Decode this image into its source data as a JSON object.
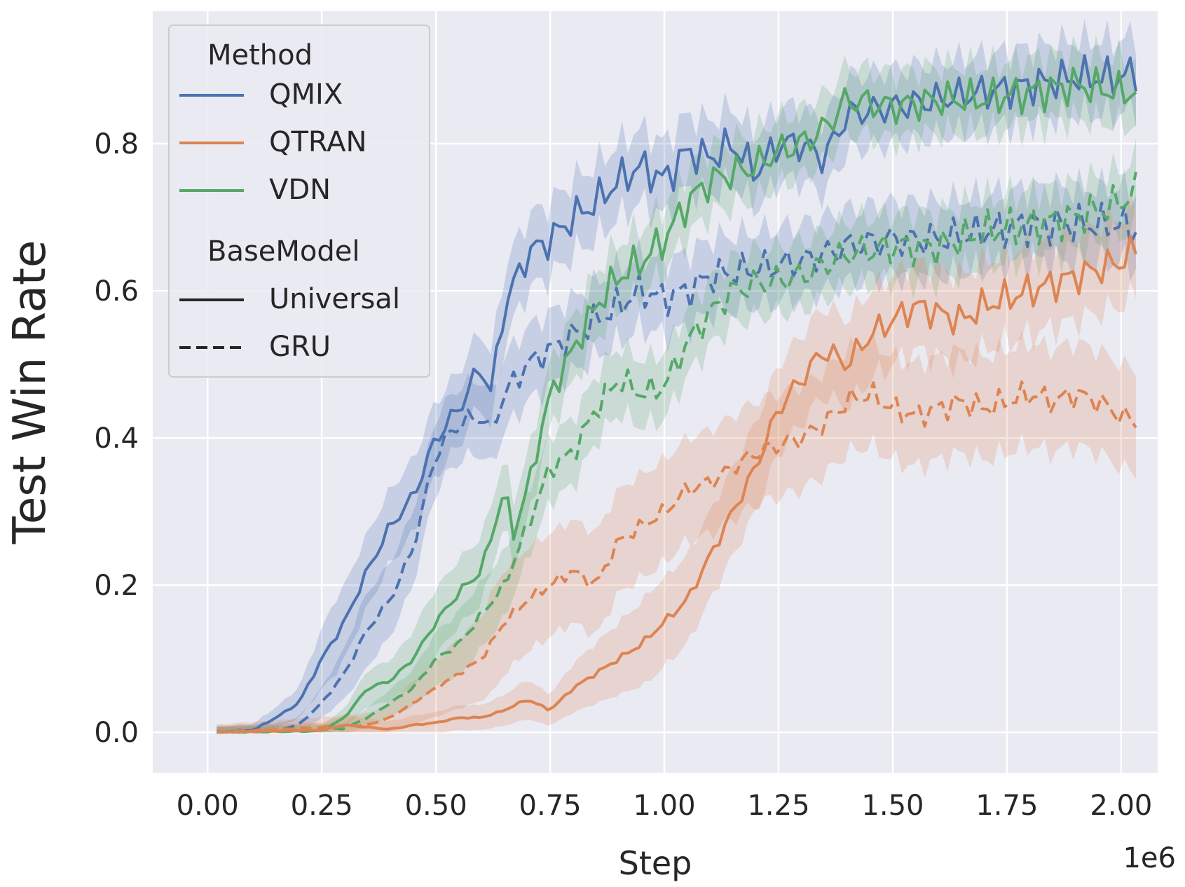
{
  "chart_data": {
    "type": "line",
    "xlabel": "Step",
    "ylabel": "Test Win Rate",
    "x_offset_label": "1e6",
    "xlim": [
      -0.12,
      2.08
    ],
    "ylim": [
      -0.055,
      0.98
    ],
    "x_ticks": [
      0.0,
      0.25,
      0.5,
      0.75,
      1.0,
      1.25,
      1.5,
      1.75,
      2.0
    ],
    "x_tick_labels": [
      "0.00",
      "0.25",
      "0.50",
      "0.75",
      "1.00",
      "1.25",
      "1.50",
      "1.75",
      "2.00"
    ],
    "y_ticks": [
      0.0,
      0.2,
      0.4,
      0.6,
      0.8
    ],
    "y_tick_labels": [
      "0.0",
      "0.2",
      "0.4",
      "0.6",
      "0.8"
    ],
    "grid": true,
    "legend": {
      "placement": "upper-left",
      "method_title": "Method",
      "basemodel_title": "BaseModel",
      "methods": [
        {
          "name": "QMIX",
          "color": "#4c72b0"
        },
        {
          "name": "QTRAN",
          "color": "#dd8452"
        },
        {
          "name": "VDN",
          "color": "#55a868"
        }
      ],
      "basemodels": [
        {
          "name": "Universal",
          "style": "solid"
        },
        {
          "name": "GRU",
          "style": "dashed"
        }
      ]
    },
    "series": [
      {
        "name": "QMIX / Universal",
        "method": "QMIX",
        "basemodel": "Universal",
        "color": "#4c72b0",
        "dash": "solid",
        "band": 0.05,
        "points": [
          [
            0.02,
            0.0
          ],
          [
            0.1,
            0.003
          ],
          [
            0.15,
            0.02
          ],
          [
            0.2,
            0.04
          ],
          [
            0.25,
            0.1
          ],
          [
            0.3,
            0.15
          ],
          [
            0.35,
            0.22
          ],
          [
            0.4,
            0.28
          ],
          [
            0.45,
            0.32
          ],
          [
            0.5,
            0.4
          ],
          [
            0.55,
            0.44
          ],
          [
            0.6,
            0.5
          ],
          [
            0.62,
            0.46
          ],
          [
            0.65,
            0.58
          ],
          [
            0.7,
            0.65
          ],
          [
            0.75,
            0.67
          ],
          [
            0.8,
            0.7
          ],
          [
            0.85,
            0.72
          ],
          [
            0.9,
            0.75
          ],
          [
            0.95,
            0.77
          ],
          [
            1.0,
            0.75
          ],
          [
            1.05,
            0.79
          ],
          [
            1.1,
            0.78
          ],
          [
            1.15,
            0.8
          ],
          [
            1.2,
            0.76
          ],
          [
            1.25,
            0.8
          ],
          [
            1.3,
            0.8
          ],
          [
            1.35,
            0.78
          ],
          [
            1.4,
            0.84
          ],
          [
            1.5,
            0.85
          ],
          [
            1.6,
            0.86
          ],
          [
            1.7,
            0.87
          ],
          [
            1.8,
            0.88
          ],
          [
            1.9,
            0.89
          ],
          [
            2.0,
            0.89
          ],
          [
            2.04,
            0.9
          ]
        ]
      },
      {
        "name": "QMIX / GRU",
        "method": "QMIX",
        "basemodel": "GRU",
        "color": "#4c72b0",
        "dash": "dashed",
        "band": 0.05,
        "points": [
          [
            0.02,
            0.0
          ],
          [
            0.15,
            0.003
          ],
          [
            0.2,
            0.01
          ],
          [
            0.25,
            0.04
          ],
          [
            0.3,
            0.08
          ],
          [
            0.35,
            0.14
          ],
          [
            0.4,
            0.18
          ],
          [
            0.45,
            0.25
          ],
          [
            0.5,
            0.38
          ],
          [
            0.55,
            0.42
          ],
          [
            0.6,
            0.43
          ],
          [
            0.62,
            0.41
          ],
          [
            0.65,
            0.46
          ],
          [
            0.7,
            0.5
          ],
          [
            0.75,
            0.52
          ],
          [
            0.8,
            0.54
          ],
          [
            0.85,
            0.56
          ],
          [
            0.9,
            0.58
          ],
          [
            0.95,
            0.6
          ],
          [
            1.0,
            0.59
          ],
          [
            1.05,
            0.6
          ],
          [
            1.1,
            0.62
          ],
          [
            1.2,
            0.63
          ],
          [
            1.3,
            0.64
          ],
          [
            1.4,
            0.66
          ],
          [
            1.5,
            0.67
          ],
          [
            1.6,
            0.67
          ],
          [
            1.7,
            0.68
          ],
          [
            1.8,
            0.69
          ],
          [
            1.9,
            0.69
          ],
          [
            2.0,
            0.69
          ],
          [
            2.04,
            0.68
          ]
        ]
      },
      {
        "name": "VDN / Universal",
        "method": "VDN",
        "basemodel": "Universal",
        "color": "#55a868",
        "dash": "solid",
        "band": 0.045,
        "points": [
          [
            0.02,
            0.0
          ],
          [
            0.25,
            0.002
          ],
          [
            0.3,
            0.02
          ],
          [
            0.35,
            0.06
          ],
          [
            0.4,
            0.07
          ],
          [
            0.45,
            0.1
          ],
          [
            0.5,
            0.15
          ],
          [
            0.55,
            0.19
          ],
          [
            0.6,
            0.22
          ],
          [
            0.65,
            0.33
          ],
          [
            0.67,
            0.27
          ],
          [
            0.7,
            0.33
          ],
          [
            0.75,
            0.46
          ],
          [
            0.8,
            0.52
          ],
          [
            0.85,
            0.58
          ],
          [
            0.9,
            0.62
          ],
          [
            0.95,
            0.64
          ],
          [
            1.0,
            0.67
          ],
          [
            1.05,
            0.72
          ],
          [
            1.1,
            0.75
          ],
          [
            1.15,
            0.76
          ],
          [
            1.2,
            0.77
          ],
          [
            1.25,
            0.79
          ],
          [
            1.3,
            0.8
          ],
          [
            1.35,
            0.82
          ],
          [
            1.4,
            0.86
          ],
          [
            1.5,
            0.85
          ],
          [
            1.6,
            0.86
          ],
          [
            1.7,
            0.86
          ],
          [
            1.8,
            0.87
          ],
          [
            1.9,
            0.88
          ],
          [
            2.0,
            0.87
          ],
          [
            2.04,
            0.87
          ]
        ]
      },
      {
        "name": "VDN / GRU",
        "method": "VDN",
        "basemodel": "GRU",
        "color": "#55a868",
        "dash": "dashed",
        "band": 0.045,
        "points": [
          [
            0.02,
            0.0
          ],
          [
            0.3,
            0.005
          ],
          [
            0.35,
            0.02
          ],
          [
            0.4,
            0.04
          ],
          [
            0.45,
            0.06
          ],
          [
            0.5,
            0.1
          ],
          [
            0.55,
            0.12
          ],
          [
            0.6,
            0.16
          ],
          [
            0.65,
            0.2
          ],
          [
            0.7,
            0.28
          ],
          [
            0.75,
            0.36
          ],
          [
            0.8,
            0.38
          ],
          [
            0.85,
            0.44
          ],
          [
            0.9,
            0.48
          ],
          [
            0.95,
            0.46
          ],
          [
            1.0,
            0.47
          ],
          [
            1.05,
            0.53
          ],
          [
            1.1,
            0.57
          ],
          [
            1.15,
            0.6
          ],
          [
            1.2,
            0.61
          ],
          [
            1.3,
            0.62
          ],
          [
            1.4,
            0.65
          ],
          [
            1.5,
            0.66
          ],
          [
            1.6,
            0.66
          ],
          [
            1.7,
            0.68
          ],
          [
            1.8,
            0.69
          ],
          [
            1.9,
            0.7
          ],
          [
            2.0,
            0.72
          ],
          [
            2.04,
            0.74
          ]
        ]
      },
      {
        "name": "QTRAN / Universal",
        "method": "QTRAN",
        "basemodel": "Universal",
        "color": "#dd8452",
        "dash": "solid",
        "band": 0.06,
        "points": [
          [
            0.02,
            0.0
          ],
          [
            0.25,
            0.003
          ],
          [
            0.3,
            0.01
          ],
          [
            0.35,
            0.007
          ],
          [
            0.4,
            0.004
          ],
          [
            0.45,
            0.01
          ],
          [
            0.5,
            0.013
          ],
          [
            0.55,
            0.02
          ],
          [
            0.6,
            0.02
          ],
          [
            0.65,
            0.03
          ],
          [
            0.7,
            0.045
          ],
          [
            0.75,
            0.03
          ],
          [
            0.8,
            0.06
          ],
          [
            0.85,
            0.08
          ],
          [
            0.9,
            0.1
          ],
          [
            0.95,
            0.12
          ],
          [
            1.0,
            0.15
          ],
          [
            1.05,
            0.18
          ],
          [
            1.1,
            0.24
          ],
          [
            1.15,
            0.3
          ],
          [
            1.2,
            0.36
          ],
          [
            1.25,
            0.44
          ],
          [
            1.3,
            0.48
          ],
          [
            1.35,
            0.52
          ],
          [
            1.4,
            0.5
          ],
          [
            1.45,
            0.54
          ],
          [
            1.5,
            0.56
          ],
          [
            1.55,
            0.58
          ],
          [
            1.6,
            0.57
          ],
          [
            1.65,
            0.56
          ],
          [
            1.7,
            0.58
          ],
          [
            1.8,
            0.6
          ],
          [
            1.9,
            0.62
          ],
          [
            2.0,
            0.64
          ],
          [
            2.04,
            0.66
          ]
        ]
      },
      {
        "name": "QTRAN / GRU",
        "method": "QTRAN",
        "basemodel": "GRU",
        "color": "#dd8452",
        "dash": "dashed",
        "band": 0.07,
        "points": [
          [
            0.02,
            0.0
          ],
          [
            0.35,
            0.01
          ],
          [
            0.4,
            0.02
          ],
          [
            0.45,
            0.04
          ],
          [
            0.5,
            0.06
          ],
          [
            0.55,
            0.08
          ],
          [
            0.6,
            0.1
          ],
          [
            0.65,
            0.15
          ],
          [
            0.7,
            0.18
          ],
          [
            0.75,
            0.2
          ],
          [
            0.8,
            0.22
          ],
          [
            0.85,
            0.2
          ],
          [
            0.9,
            0.26
          ],
          [
            0.95,
            0.28
          ],
          [
            1.0,
            0.3
          ],
          [
            1.05,
            0.33
          ],
          [
            1.1,
            0.34
          ],
          [
            1.15,
            0.36
          ],
          [
            1.2,
            0.38
          ],
          [
            1.25,
            0.39
          ],
          [
            1.3,
            0.4
          ],
          [
            1.35,
            0.42
          ],
          [
            1.4,
            0.45
          ],
          [
            1.45,
            0.46
          ],
          [
            1.5,
            0.44
          ],
          [
            1.55,
            0.43
          ],
          [
            1.6,
            0.44
          ],
          [
            1.65,
            0.45
          ],
          [
            1.7,
            0.44
          ],
          [
            1.75,
            0.45
          ],
          [
            1.8,
            0.46
          ],
          [
            1.85,
            0.45
          ],
          [
            1.9,
            0.46
          ],
          [
            1.95,
            0.45
          ],
          [
            2.0,
            0.43
          ],
          [
            2.04,
            0.42
          ]
        ]
      }
    ]
  }
}
